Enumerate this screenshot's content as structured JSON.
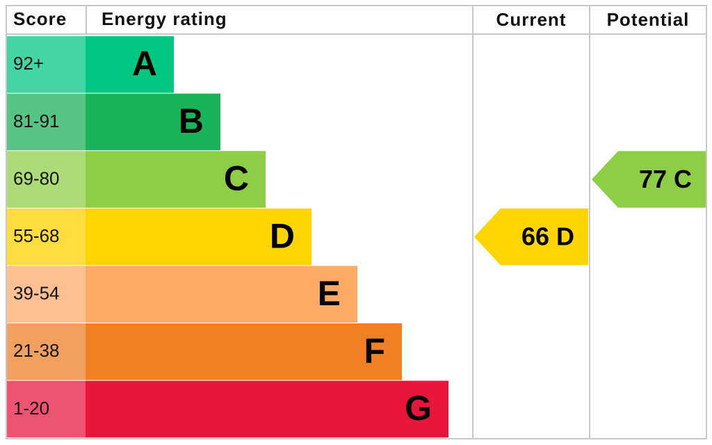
{
  "header": {
    "score": "Score",
    "energy_rating": "Energy rating",
    "current": "Current",
    "potential": "Potential"
  },
  "bands": [
    {
      "score": "92+",
      "rating": "A",
      "color": "#00c781",
      "score_color": "#45d4a3"
    },
    {
      "score": "81-91",
      "rating": "B",
      "color": "#19b459",
      "score_color": "#57c384"
    },
    {
      "score": "69-80",
      "rating": "C",
      "color": "#8dce46",
      "score_color": "#acdb78"
    },
    {
      "score": "55-68",
      "rating": "D",
      "color": "#ffd500",
      "score_color": "#ffdd3f"
    },
    {
      "score": "39-54",
      "rating": "E",
      "color": "#fcaa65",
      "score_color": "#fcc092"
    },
    {
      "score": "21-38",
      "rating": "F",
      "color": "#ef8023",
      "score_color": "#f2a060"
    },
    {
      "score": "1-20",
      "rating": "G",
      "color": "#e9153b",
      "score_color": "#ee5472"
    }
  ],
  "current": {
    "score": 66,
    "rating": "D"
  },
  "potential": {
    "score": 77,
    "rating": "C"
  }
}
